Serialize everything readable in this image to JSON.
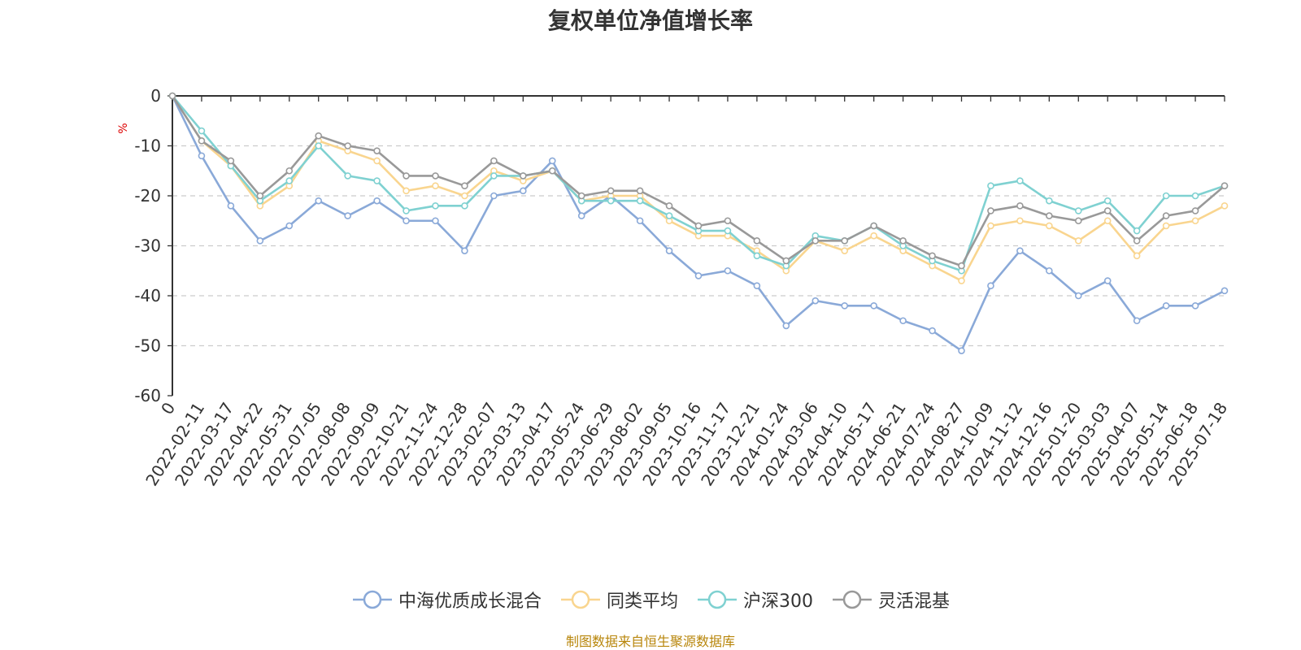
{
  "chart_data": {
    "type": "line",
    "title": "复权单位净值增长率",
    "ylabel": "%",
    "ylim": [
      -60,
      0
    ],
    "yticks": [
      0,
      -10,
      -20,
      -30,
      -40,
      -50,
      -60
    ],
    "grid": "horizontal dashed",
    "legend_position": "bottom-center",
    "x_tick_labels": [
      "0",
      "2022-02-11",
      "2022-03-17",
      "2022-04-22",
      "2022-05-31",
      "2022-07-05",
      "2022-08-08",
      "2022-09-09",
      "2022-10-21",
      "2022-11-24",
      "2022-12-28",
      "2023-02-07",
      "2023-03-13",
      "2023-04-17",
      "2023-05-24",
      "2023-06-29",
      "2023-08-02",
      "2023-09-05",
      "2023-10-16",
      "2023-11-17",
      "2023-12-21",
      "2024-01-24",
      "2024-03-06",
      "2024-04-10",
      "2024-05-17",
      "2024-06-21",
      "2024-07-24",
      "2024-08-27",
      "2024-10-09",
      "2024-11-12",
      "2024-12-16",
      "2025-01-20",
      "2025-03-03",
      "2025-04-07",
      "2025-05-14",
      "2025-06-18",
      "2025-07-18"
    ],
    "x": [
      "0",
      "2022-02-11",
      "2022-03-17",
      "2022-04-22",
      "2022-05-31",
      "2022-07-05",
      "2022-08-08",
      "2022-09-09",
      "2022-10-21",
      "2022-11-24",
      "2022-12-28",
      "2023-02-07",
      "2023-03-13",
      "2023-04-17",
      "2023-05-24",
      "2023-06-29",
      "2023-08-02",
      "2023-09-05",
      "2023-10-16",
      "2023-11-17",
      "2023-12-21",
      "2024-01-24",
      "2024-03-06",
      "2024-04-10",
      "2024-05-17",
      "2024-06-21",
      "2024-07-24",
      "2024-08-27",
      "2024-10-09",
      "2024-11-12",
      "2024-12-16",
      "2025-01-20",
      "2025-03-03",
      "2025-04-07",
      "2025-05-14",
      "2025-06-18",
      "2025-07-18"
    ],
    "series": [
      {
        "name": "中海优质成长混合",
        "color": "#8aa9d8",
        "values": [
          0,
          -12,
          -22,
          -29,
          -26,
          -21,
          -24,
          -21,
          -25,
          -25,
          -31,
          -20,
          -19,
          -13,
          -24,
          -20,
          -25,
          -31,
          -36,
          -35,
          -38,
          -46,
          -41,
          -42,
          -42,
          -45,
          -47,
          -51,
          -38,
          -31,
          -35,
          -40,
          -37,
          -45,
          -42,
          -42,
          -39
        ]
      },
      {
        "name": "同类平均",
        "color": "#f9d58f",
        "values": [
          0,
          -9,
          -14,
          -22,
          -18,
          -9,
          -11,
          -13,
          -19,
          -18,
          -20,
          -15,
          -17,
          -15,
          -21,
          -20,
          -20,
          -25,
          -28,
          -28,
          -31,
          -35,
          -29,
          -31,
          -28,
          -31,
          -34,
          -37,
          -26,
          -25,
          -26,
          -29,
          -25,
          -32,
          -26,
          -25,
          -22
        ]
      },
      {
        "name": "沪深300",
        "color": "#7fd1d1",
        "values": [
          0,
          -7,
          -14,
          -21,
          -17,
          -10,
          -16,
          -17,
          -23,
          -22,
          -22,
          -16,
          -16,
          -15,
          -21,
          -21,
          -21,
          -24,
          -27,
          -27,
          -32,
          -34,
          -28,
          -29,
          -26,
          -30,
          -33,
          -35,
          -18,
          -17,
          -21,
          -23,
          -21,
          -27,
          -20,
          -20,
          -18
        ]
      },
      {
        "name": "灵活混基",
        "color": "#999999",
        "values": [
          0,
          -9,
          -13,
          -20,
          -15,
          -8,
          -10,
          -11,
          -16,
          -16,
          -18,
          -13,
          -16,
          -15,
          -20,
          -19,
          -19,
          -22,
          -26,
          -25,
          -29,
          -33,
          -29,
          -29,
          -26,
          -29,
          -32,
          -34,
          -23,
          -22,
          -24,
          -25,
          -23,
          -29,
          -24,
          -23,
          -18
        ]
      }
    ],
    "source_note": "制图数据来自恒生聚源数据库"
  }
}
